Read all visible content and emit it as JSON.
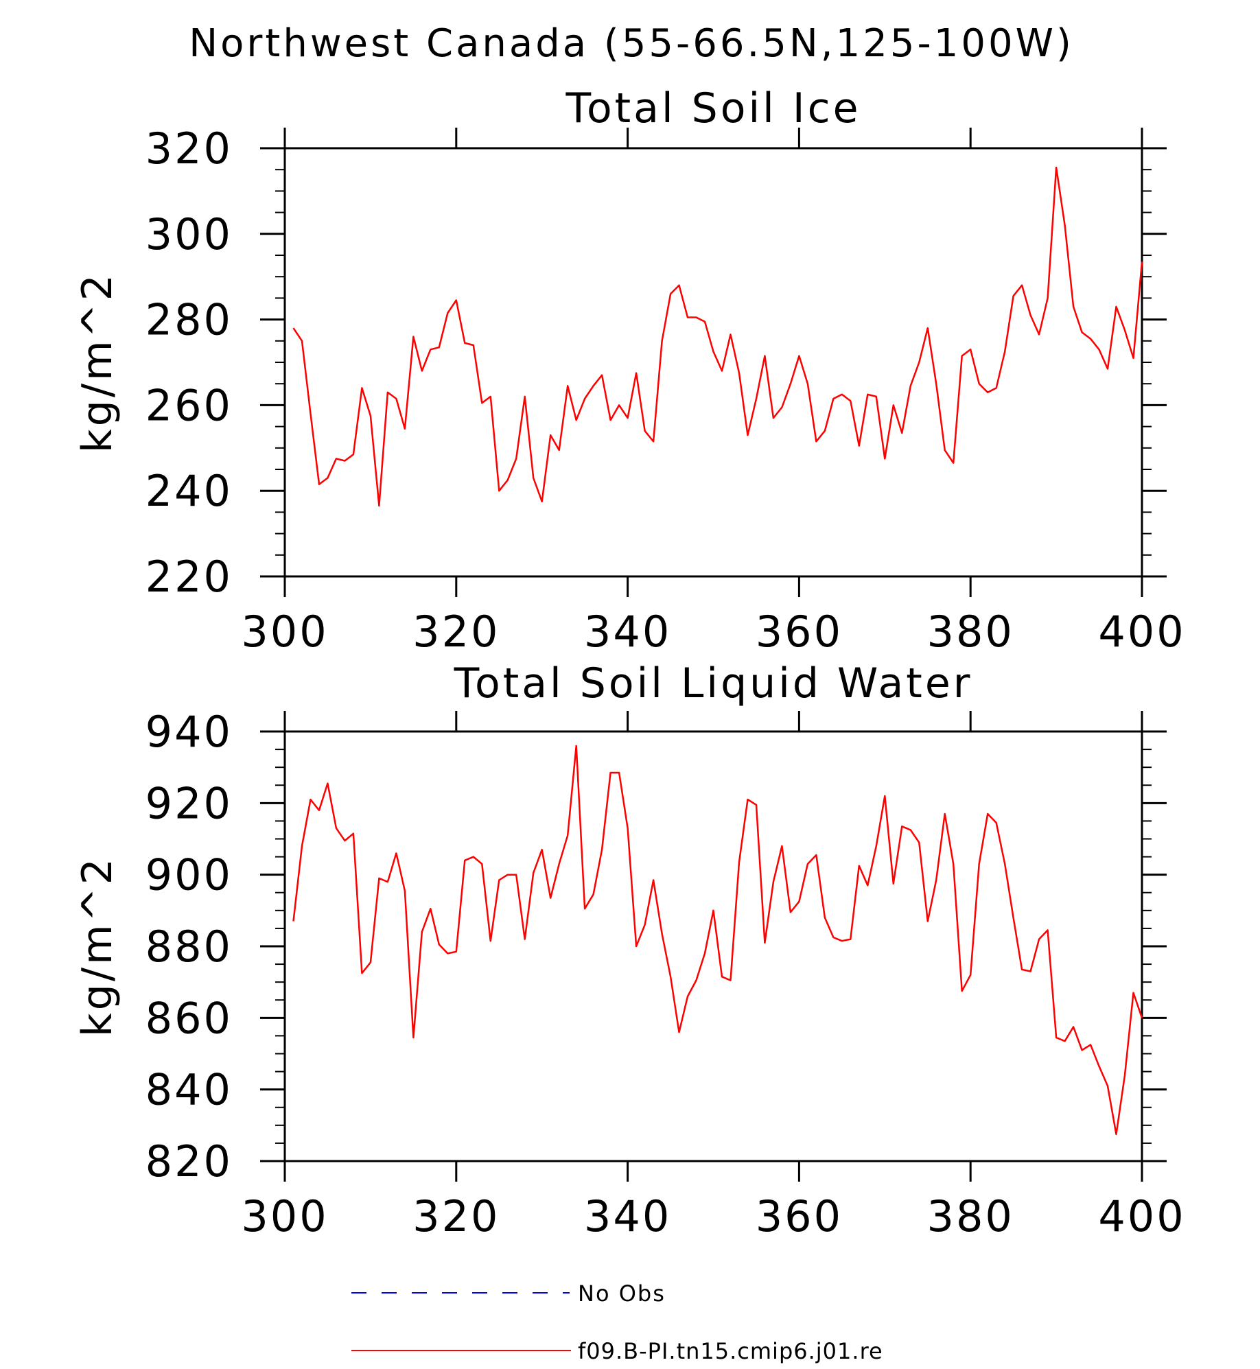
{
  "page_title": "Northwest Canada (55-66.5N,125-100W)",
  "legend": {
    "obs_label": "No Obs",
    "model_label": "f09.B-PI.tn15.cmip6.j01.re",
    "obs_color": "#0000ff",
    "model_color": "#ff0000"
  },
  "chart_data": [
    {
      "type": "line",
      "title": "Total Soil Ice",
      "xlabel": "",
      "ylabel": "kg/m^2",
      "xlim": [
        300,
        400
      ],
      "ylim": [
        220,
        320
      ],
      "xticks": [
        300,
        320,
        340,
        360,
        380,
        400
      ],
      "yticks": [
        220,
        240,
        260,
        280,
        300,
        320
      ],
      "grid": false,
      "series": [
        {
          "name": "f09.B-PI.tn15.cmip6.j01.re",
          "color": "#ff0000",
          "x": [
            301,
            302,
            303,
            304,
            305,
            306,
            307,
            308,
            309,
            310,
            311,
            312,
            313,
            314,
            315,
            316,
            317,
            318,
            319,
            320,
            321,
            322,
            323,
            324,
            325,
            326,
            327,
            328,
            329,
            330,
            331,
            332,
            333,
            334,
            335,
            336,
            337,
            338,
            339,
            340,
            341,
            342,
            343,
            344,
            345,
            346,
            347,
            348,
            349,
            350,
            351,
            352,
            353,
            354,
            355,
            356,
            357,
            358,
            359,
            360,
            361,
            362,
            363,
            364,
            365,
            366,
            367,
            368,
            369,
            370,
            371,
            372,
            373,
            374,
            375,
            376,
            377,
            378,
            379,
            380,
            381,
            382,
            383,
            384,
            385,
            386,
            387,
            388,
            389,
            390,
            391,
            392,
            393,
            394,
            395,
            396,
            397,
            398,
            399,
            400
          ],
          "values": [
            278,
            275,
            258,
            241.5,
            243,
            247.5,
            247,
            248.5,
            264,
            257.5,
            236.5,
            263,
            261.5,
            254.5,
            276,
            268,
            273,
            273.5,
            281.5,
            284.5,
            274.5,
            274,
            260.5,
            262,
            240,
            242.5,
            247.5,
            262,
            243,
            237.5,
            253,
            249.5,
            264.5,
            256.5,
            261.5,
            264.5,
            267,
            256.5,
            260,
            257,
            267.5,
            254,
            251.5,
            275,
            286,
            288,
            280.5,
            280.5,
            279.5,
            272.5,
            268,
            276.5,
            267.5,
            253,
            261.5,
            271.5,
            257,
            259.5,
            265,
            271.5,
            265,
            251.5,
            254,
            261.5,
            262.5,
            261,
            250.5,
            262.5,
            262,
            247.5,
            260,
            253.5,
            264.5,
            270,
            278,
            265,
            249.5,
            246.5,
            271.5,
            273,
            265,
            263,
            264,
            272.5,
            285.5,
            288,
            281,
            276.5,
            285,
            315.5,
            302,
            283,
            277,
            275.5,
            273,
            268.5,
            283,
            277.5,
            271,
            293.5
          ]
        }
      ]
    },
    {
      "type": "line",
      "title": "Total Soil Liquid Water",
      "xlabel": "",
      "ylabel": "kg/m^2",
      "xlim": [
        300,
        400
      ],
      "ylim": [
        820,
        940
      ],
      "xticks": [
        300,
        320,
        340,
        360,
        380,
        400
      ],
      "yticks": [
        820,
        840,
        860,
        880,
        900,
        920,
        940
      ],
      "grid": false,
      "series": [
        {
          "name": "f09.B-PI.tn15.cmip6.j01.re",
          "color": "#ff0000",
          "x": [
            301,
            302,
            303,
            304,
            305,
            306,
            307,
            308,
            309,
            310,
            311,
            312,
            313,
            314,
            315,
            316,
            317,
            318,
            319,
            320,
            321,
            322,
            323,
            324,
            325,
            326,
            327,
            328,
            329,
            330,
            331,
            332,
            333,
            334,
            335,
            336,
            337,
            338,
            339,
            340,
            341,
            342,
            343,
            344,
            345,
            346,
            347,
            348,
            349,
            350,
            351,
            352,
            353,
            354,
            355,
            356,
            357,
            358,
            359,
            360,
            361,
            362,
            363,
            364,
            365,
            366,
            367,
            368,
            369,
            370,
            371,
            372,
            373,
            374,
            375,
            376,
            377,
            378,
            379,
            380,
            381,
            382,
            383,
            384,
            385,
            386,
            387,
            388,
            389,
            390,
            391,
            392,
            393,
            394,
            395,
            396,
            397,
            398,
            399,
            400
          ],
          "values": [
            887,
            908,
            921,
            918,
            925.5,
            913,
            909.5,
            911.5,
            872.5,
            875.5,
            899,
            898,
            906,
            895.5,
            854.5,
            884,
            890.5,
            880.5,
            878,
            878.5,
            904,
            905,
            903,
            881.5,
            898.5,
            900,
            900,
            882,
            900.5,
            907,
            893.5,
            903,
            911,
            936,
            890.5,
            894.5,
            907,
            928.5,
            928.5,
            913,
            880,
            886,
            898.5,
            883.5,
            871.5,
            856,
            866,
            870.5,
            878,
            890,
            871.5,
            870.5,
            903.5,
            921,
            919.5,
            881,
            898,
            908,
            889.5,
            892.5,
            903,
            905.5,
            888,
            882.5,
            881.5,
            882,
            902.5,
            897,
            908,
            922,
            897.5,
            913.5,
            912.5,
            909,
            887,
            898.5,
            917,
            903,
            867.5,
            872,
            903,
            917,
            914.5,
            903,
            888,
            873.5,
            873,
            882,
            884.5,
            854.5,
            853.5,
            857.5,
            851,
            852.5,
            846.5,
            841,
            827.5,
            844,
            867,
            860
          ]
        }
      ]
    }
  ]
}
